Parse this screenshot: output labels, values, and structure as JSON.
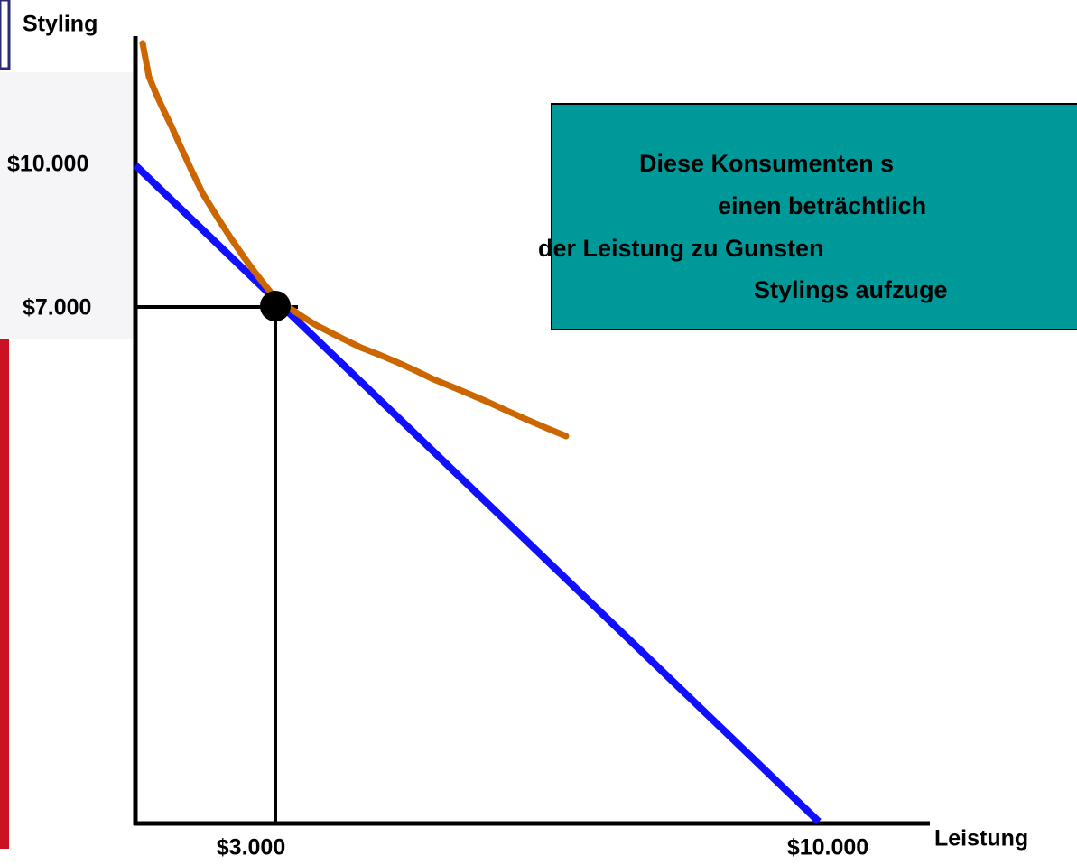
{
  "diagram": {
    "y_axis_label": "Styling",
    "x_axis_label": "Leistung",
    "y_labels": [
      "$10.000",
      "$7.000"
    ],
    "x_labels": [
      "$3.000",
      "$10.000"
    ],
    "callout": {
      "lines": [
        "Diese Konsumenten s",
        "einen beträchtlich",
        "der Leistung zu Gunsten",
        "Stylings aufzuge"
      ]
    }
  }
}
